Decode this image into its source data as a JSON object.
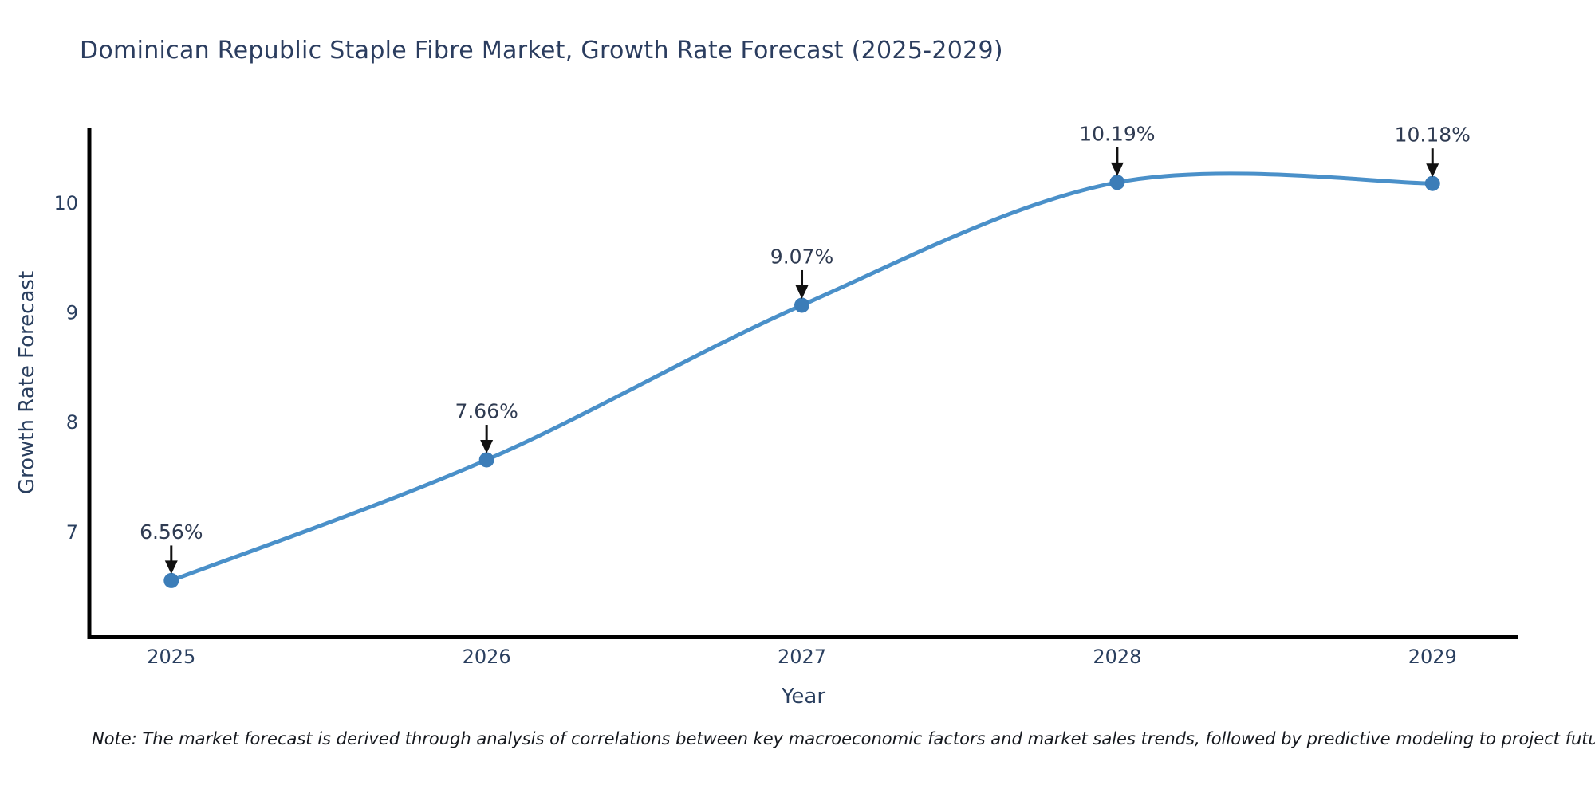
{
  "note": "Note: The market forecast is derived through analysis of correlations between key macroeconomic factors and market sales trends, followed by predictive modeling to project future sales",
  "chart_data": {
    "type": "line",
    "title": "Dominican Republic Staple Fibre Market, Growth Rate Forecast (2025-2029)",
    "xlabel": "Year",
    "ylabel": "Growth Rate Forecast",
    "x": [
      2025,
      2026,
      2027,
      2028,
      2029
    ],
    "values": [
      6.56,
      7.66,
      9.07,
      10.19,
      10.18
    ],
    "point_labels": [
      "6.56%",
      "7.66%",
      "9.07%",
      "10.19%",
      "10.18%"
    ],
    "xticks": [
      2025,
      2026,
      2027,
      2028,
      2029
    ],
    "yticks": [
      7,
      8,
      9,
      10
    ],
    "xlim": [
      2024.74,
      2029.27
    ],
    "ylim": [
      6.04,
      10.69
    ],
    "grid": false,
    "legend": false,
    "curve": "spline",
    "colors": {
      "line": "#4a90c9",
      "marker": "#3c7db8",
      "text": "#2a3f5f",
      "axis": "#000000",
      "arrow": "#111111"
    }
  }
}
